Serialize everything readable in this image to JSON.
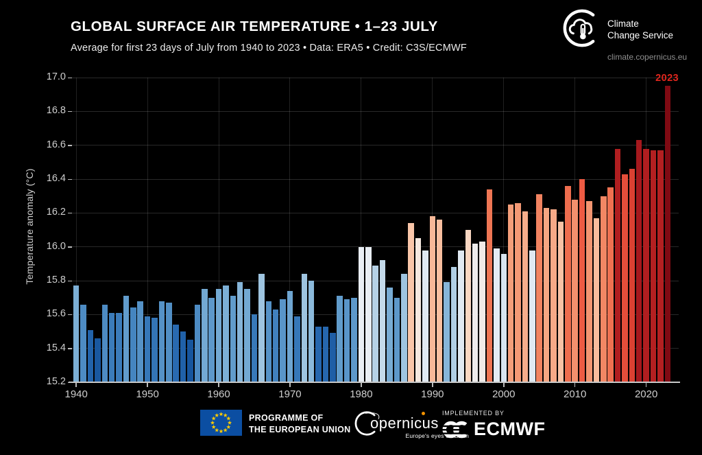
{
  "header": {
    "title": "GLOBAL SURFACE AIR TEMPERATURE • 1–23 JULY",
    "subtitle": "Average for first 23 days of July from 1940 to 2023 • Data: ERA5 • Credit: C3S/ECMWF"
  },
  "c3s_logo": {
    "name_line1": "Climate",
    "name_line2": "Change Service",
    "url": "climate.copernicus.eu"
  },
  "chart_data": {
    "type": "bar",
    "title": "GLOBAL SURFACE AIR TEMPERATURE • 1–23 JULY",
    "xlabel": "",
    "ylabel": "Temperature anomaly (°C)",
    "ylim": [
      15.2,
      17.0
    ],
    "yticks": [
      15.2,
      15.4,
      15.6,
      15.8,
      16.0,
      16.2,
      16.4,
      16.6,
      16.8,
      17.0
    ],
    "xticks": [
      1940,
      1950,
      1960,
      1970,
      1980,
      1990,
      2000,
      2010,
      2020
    ],
    "grid": true,
    "start_year": 1940,
    "end_year": 2023,
    "values": [
      15.77,
      15.66,
      15.51,
      15.46,
      15.66,
      15.61,
      15.61,
      15.71,
      15.64,
      15.68,
      15.59,
      15.58,
      15.68,
      15.67,
      15.54,
      15.5,
      15.45,
      15.66,
      15.75,
      15.7,
      15.75,
      15.77,
      15.71,
      15.79,
      15.75,
      15.6,
      15.84,
      15.68,
      15.63,
      15.69,
      15.74,
      15.59,
      15.84,
      15.8,
      15.53,
      15.53,
      15.49,
      15.71,
      15.69,
      15.7,
      16.0,
      16.0,
      15.89,
      15.92,
      15.76,
      15.7,
      15.84,
      16.14,
      16.05,
      15.98,
      16.18,
      16.16,
      15.79,
      15.88,
      15.98,
      16.1,
      16.02,
      16.03,
      16.34,
      15.99,
      15.96,
      16.25,
      16.26,
      16.21,
      15.98,
      16.31,
      16.23,
      16.22,
      16.15,
      16.36,
      16.28,
      16.4,
      16.27,
      16.17,
      16.3,
      16.35,
      16.58,
      16.43,
      16.46,
      16.63,
      16.58,
      16.57,
      16.57,
      16.95
    ],
    "annotation": {
      "text": "2023",
      "color": "#e0261d"
    },
    "colormap_stops": [
      [
        15.4,
        "#0e4a92"
      ],
      [
        15.52,
        "#2465ad"
      ],
      [
        15.62,
        "#3d7ebc"
      ],
      [
        15.72,
        "#659fce"
      ],
      [
        15.82,
        "#94bfde"
      ],
      [
        15.92,
        "#c4daea"
      ],
      [
        16.0,
        "#e9eef4"
      ],
      [
        16.06,
        "#f8e8dc"
      ],
      [
        16.14,
        "#f9c6a9"
      ],
      [
        16.24,
        "#f5a27e"
      ],
      [
        16.33,
        "#f07a57"
      ],
      [
        16.41,
        "#ec5740"
      ],
      [
        16.5,
        "#cb2f27"
      ],
      [
        16.6,
        "#a91a1e"
      ],
      [
        16.8,
        "#8c0e16"
      ],
      [
        17.0,
        "#7a0912"
      ]
    ]
  },
  "footer": {
    "eu_line1": "PROGRAMME OF",
    "eu_line2": "THE EUROPEAN UNION",
    "copernicus_word": "opernicus",
    "copernicus_tagline": "Europe's eyes on Earth",
    "implemented_by": "IMPLEMENTED BY",
    "ecmwf_name": "ECMWF"
  }
}
